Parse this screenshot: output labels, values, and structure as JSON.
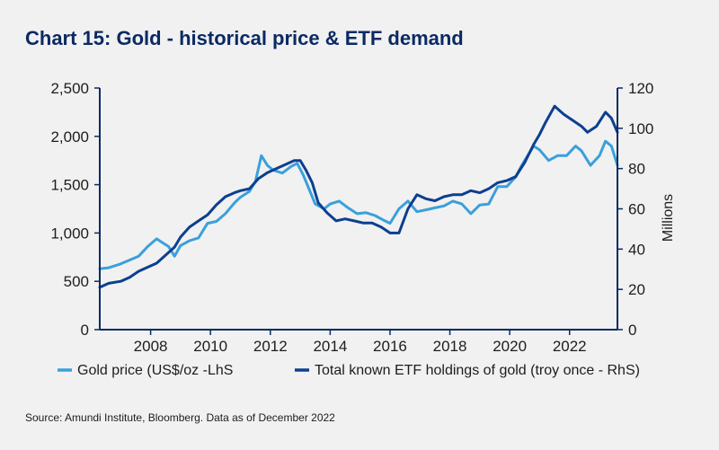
{
  "title": "Chart 15: Gold - historical price & ETF demand",
  "source": "Source: Amundi Institute, Bloomberg. Data as of December 2022",
  "chart_data": {
    "type": "line",
    "title": "Chart 15: Gold - historical price & ETF demand",
    "xlabel": "",
    "ylabel_left": "",
    "ylabel_right": "Millions",
    "xlim": [
      2006.3,
      2023.6
    ],
    "x_ticks": [
      "2008",
      "2010",
      "2012",
      "2014",
      "2016",
      "2018",
      "2020",
      "2022"
    ],
    "x_tick_values": [
      2008,
      2010,
      2012,
      2014,
      2016,
      2018,
      2020,
      2022
    ],
    "ylim_left": [
      0,
      2500
    ],
    "y_ticks_left": [
      "0",
      "500",
      "1,000",
      "1,500",
      "2,000",
      "2,500"
    ],
    "ylim_right": [
      0,
      120
    ],
    "y_ticks_right": [
      "0",
      "20",
      "40",
      "60",
      "80",
      "100",
      "120"
    ],
    "grid": false,
    "legend_position": "bottom",
    "series": [
      {
        "name": "Gold price (US$/oz -LhS",
        "axis": "left",
        "color": "#3aa0dc",
        "x": [
          2006.3,
          2006.6,
          2007.0,
          2007.3,
          2007.6,
          2007.9,
          2008.2,
          2008.4,
          2008.6,
          2008.8,
          2009.0,
          2009.3,
          2009.6,
          2009.9,
          2010.2,
          2010.5,
          2010.8,
          2011.0,
          2011.3,
          2011.5,
          2011.7,
          2011.9,
          2012.1,
          2012.4,
          2012.7,
          2012.9,
          2013.1,
          2013.3,
          2013.5,
          2013.8,
          2014.0,
          2014.3,
          2014.6,
          2014.9,
          2015.2,
          2015.5,
          2015.8,
          2016.0,
          2016.3,
          2016.6,
          2016.9,
          2017.2,
          2017.5,
          2017.8,
          2018.1,
          2018.4,
          2018.7,
          2019.0,
          2019.3,
          2019.6,
          2019.9,
          2020.2,
          2020.4,
          2020.6,
          2020.8,
          2021.0,
          2021.3,
          2021.6,
          2021.9,
          2022.2,
          2022.4,
          2022.7,
          2023.0,
          2023.2,
          2023.4,
          2023.6
        ],
        "values": [
          630,
          640,
          680,
          720,
          760,
          860,
          940,
          900,
          860,
          760,
          870,
          920,
          950,
          1100,
          1120,
          1200,
          1310,
          1370,
          1430,
          1530,
          1800,
          1700,
          1650,
          1620,
          1690,
          1720,
          1600,
          1450,
          1300,
          1250,
          1300,
          1330,
          1260,
          1200,
          1210,
          1180,
          1130,
          1100,
          1250,
          1330,
          1220,
          1240,
          1260,
          1280,
          1330,
          1300,
          1200,
          1290,
          1300,
          1480,
          1480,
          1580,
          1700,
          1800,
          1900,
          1860,
          1750,
          1800,
          1800,
          1900,
          1850,
          1700,
          1800,
          1950,
          1900,
          1700
        ]
      },
      {
        "name": "Total known ETF holdings of gold (troy once - RhS)",
        "axis": "right",
        "color": "#0c3f8f",
        "x": [
          2006.3,
          2006.6,
          2007.0,
          2007.3,
          2007.6,
          2007.9,
          2008.2,
          2008.5,
          2008.8,
          2009.0,
          2009.3,
          2009.6,
          2009.9,
          2010.2,
          2010.5,
          2010.8,
          2011.0,
          2011.3,
          2011.6,
          2011.9,
          2012.2,
          2012.5,
          2012.8,
          2013.0,
          2013.2,
          2013.4,
          2013.6,
          2013.9,
          2014.2,
          2014.5,
          2014.8,
          2015.1,
          2015.4,
          2015.7,
          2016.0,
          2016.3,
          2016.6,
          2016.9,
          2017.2,
          2017.5,
          2017.8,
          2018.1,
          2018.4,
          2018.7,
          2019.0,
          2019.3,
          2019.6,
          2019.9,
          2020.2,
          2020.5,
          2020.8,
          2021.0,
          2021.2,
          2021.5,
          2021.8,
          2022.1,
          2022.4,
          2022.6,
          2022.9,
          2023.2,
          2023.4,
          2023.6
        ],
        "values": [
          21,
          23,
          24,
          26,
          29,
          31,
          33,
          37,
          41,
          46,
          51,
          54,
          57,
          62,
          66,
          68,
          69,
          70,
          75,
          78,
          80,
          82,
          84,
          84,
          79,
          73,
          63,
          58,
          54,
          55,
          54,
          53,
          53,
          51,
          48,
          48,
          60,
          67,
          65,
          64,
          66,
          67,
          67,
          69,
          68,
          70,
          73,
          74,
          76,
          83,
          92,
          97,
          103,
          111,
          107,
          104,
          101,
          98,
          101,
          108,
          105,
          98
        ]
      }
    ]
  }
}
